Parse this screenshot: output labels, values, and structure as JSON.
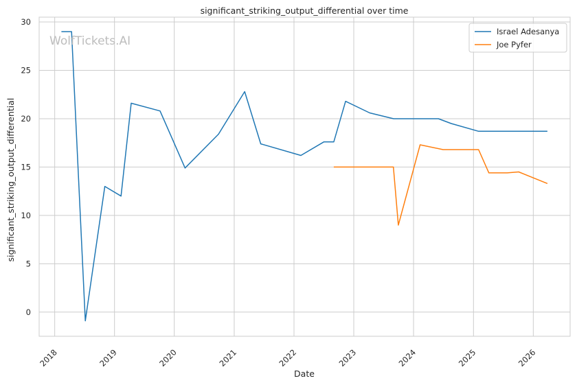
{
  "watermark": "WolfTickets.AI",
  "chart_data": {
    "type": "line",
    "title": "significant_striking_output_differential over time",
    "xlabel": "Date",
    "ylabel": "significant_striking_output_differential",
    "x_ticks": [
      "2018",
      "2019",
      "2020",
      "2021",
      "2022",
      "2023",
      "2024",
      "2025",
      "2026"
    ],
    "y_ticks": [
      0,
      5,
      10,
      15,
      20,
      25,
      30
    ],
    "xlim": [
      "2017-09-28",
      "2026-08-14"
    ],
    "ylim": [
      -2.5,
      30.5
    ],
    "grid": true,
    "legend_position": "top-right",
    "series": [
      {
        "name": "Israel Adesanya",
        "color": "#1f77b4",
        "points": [
          [
            "2018-02-11",
            29.0
          ],
          [
            "2018-04-14",
            29.0
          ],
          [
            "2018-07-07",
            -0.9
          ],
          [
            "2018-11-03",
            13.0
          ],
          [
            "2019-02-10",
            12.0
          ],
          [
            "2019-04-13",
            21.6
          ],
          [
            "2019-10-06",
            20.8
          ],
          [
            "2020-03-07",
            14.9
          ],
          [
            "2020-09-27",
            18.4
          ],
          [
            "2021-03-06",
            22.8
          ],
          [
            "2021-06-12",
            17.4
          ],
          [
            "2022-02-12",
            16.2
          ],
          [
            "2022-07-02",
            17.6
          ],
          [
            "2022-09-01",
            17.6
          ],
          [
            "2022-11-12",
            21.8
          ],
          [
            "2023-04-08",
            20.6
          ],
          [
            "2023-09-01",
            20.0
          ],
          [
            "2024-06-01",
            20.0
          ],
          [
            "2024-08-18",
            19.5
          ],
          [
            "2025-02-01",
            18.7
          ],
          [
            "2026-03-28",
            18.7
          ]
        ]
      },
      {
        "name": "Joe Pyfer",
        "color": "#ff7f0e",
        "points": [
          [
            "2022-09-01",
            15.0
          ],
          [
            "2023-08-31",
            15.0
          ],
          [
            "2023-09-30",
            9.0
          ],
          [
            "2024-02-10",
            17.3
          ],
          [
            "2024-06-29",
            16.8
          ],
          [
            "2025-02-01",
            16.8
          ],
          [
            "2025-04-05",
            14.4
          ],
          [
            "2025-07-26",
            14.4
          ],
          [
            "2025-10-04",
            14.5
          ],
          [
            "2026-03-28",
            13.3
          ]
        ]
      }
    ]
  }
}
